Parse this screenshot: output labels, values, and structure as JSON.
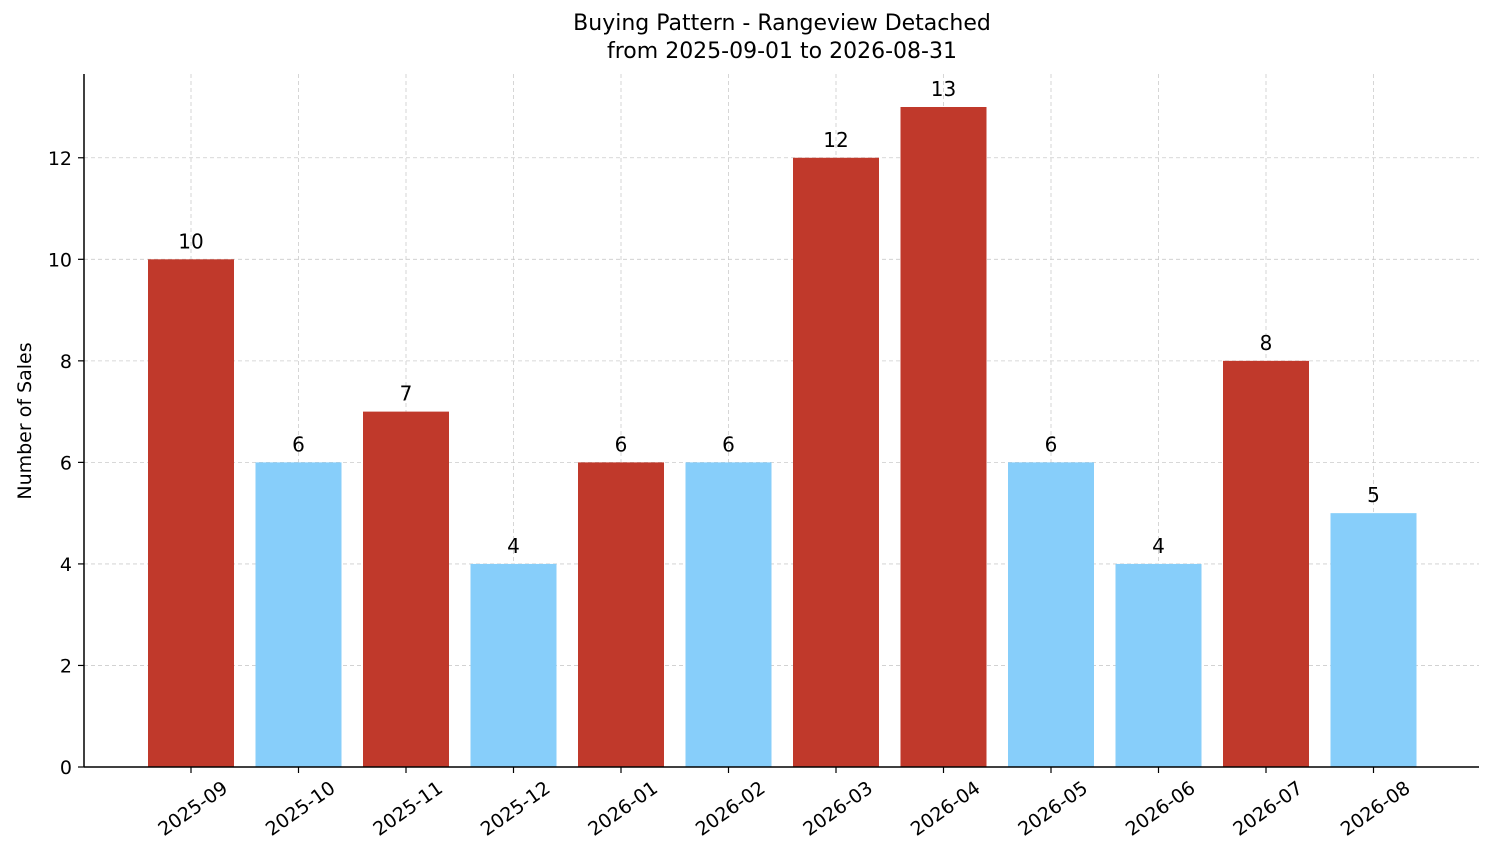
{
  "chart_data": {
    "type": "bar",
    "title_line1": "Buying Pattern - Rangeview Detached",
    "title_line2": "from 2025-09-01 to 2026-08-31",
    "xlabel": "",
    "ylabel": "Number of Sales",
    "ylim": [
      0,
      13.65
    ],
    "yticks": [
      0,
      2,
      4,
      6,
      8,
      10,
      12
    ],
    "grid": true,
    "categories": [
      "2025-09",
      "2025-10",
      "2025-11",
      "2025-12",
      "2026-01",
      "2026-02",
      "2026-03",
      "2026-04",
      "2026-05",
      "2026-06",
      "2026-07",
      "2026-08"
    ],
    "values": [
      10,
      6,
      7,
      4,
      6,
      6,
      12,
      13,
      6,
      4,
      8,
      5
    ],
    "bar_colors": [
      "#c0392b",
      "#87cefa",
      "#c0392b",
      "#87cefa",
      "#c0392b",
      "#87cefa",
      "#c0392b",
      "#c0392b",
      "#87cefa",
      "#87cefa",
      "#c0392b",
      "#87cefa"
    ]
  }
}
